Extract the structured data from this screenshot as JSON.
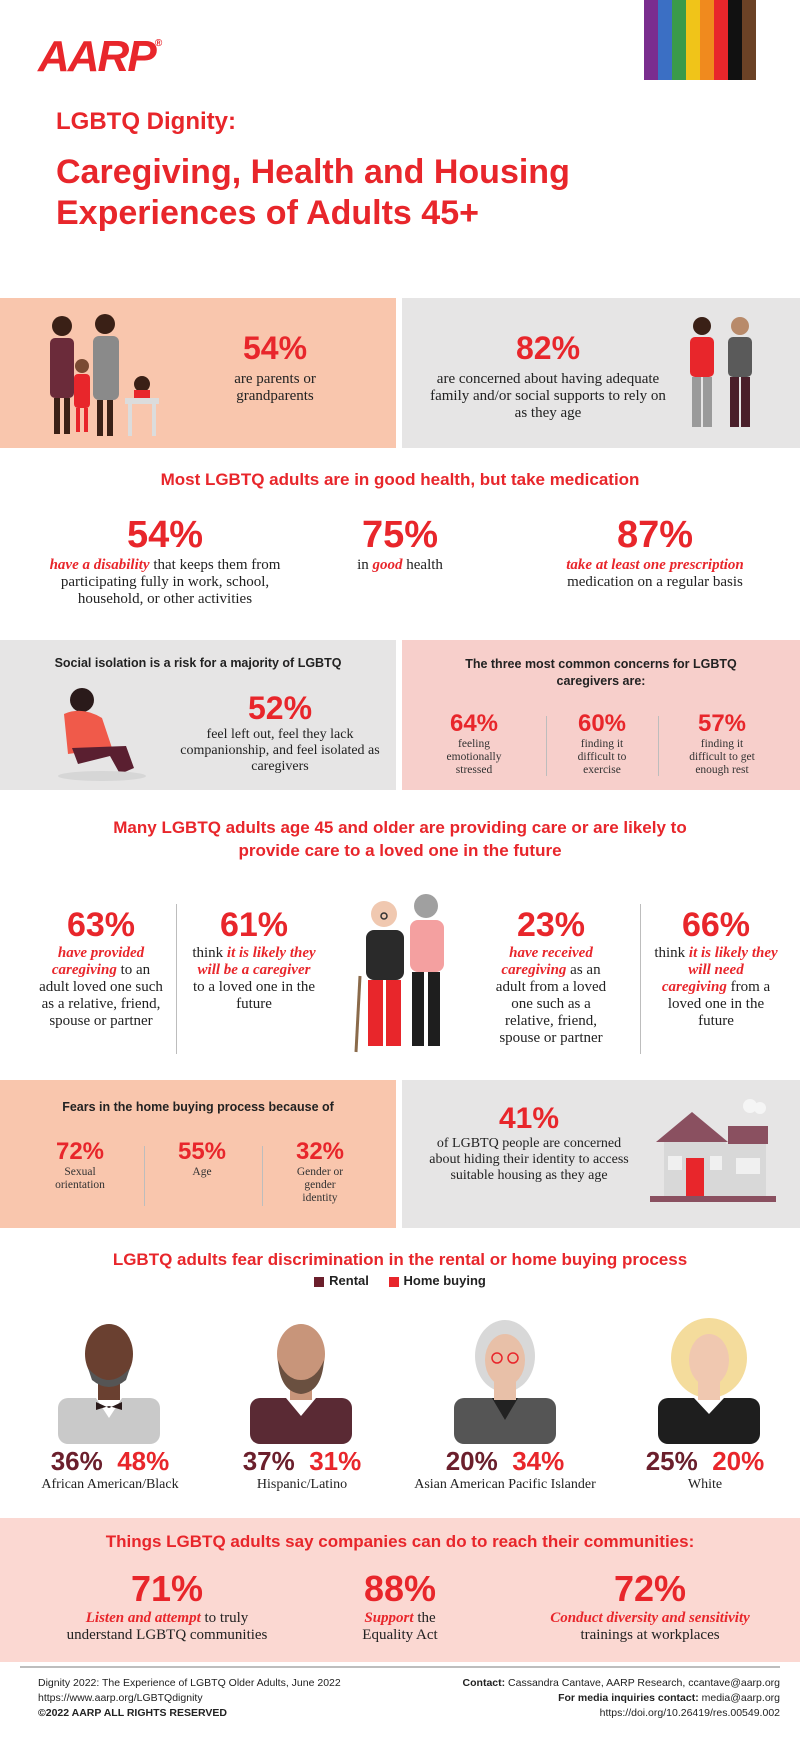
{
  "header": {
    "logo": "AARP",
    "logo_mark": "®",
    "subtitle": "LGBTQ Dignity:",
    "title": "Caregiving, Health and Housing Experiences of Adults 45+",
    "pride_colors": [
      "#7a2d8f",
      "#3b6fc4",
      "#3a9a4a",
      "#f0c419",
      "#f08a1e",
      "#e8262b",
      "#111111",
      "#6b4226"
    ]
  },
  "families": {
    "left": {
      "pct": "54%",
      "desc": "are parents or grandparents"
    },
    "right": {
      "pct": "82%",
      "desc": "are concerned about having adequate family and/or social supports to rely on as they age"
    }
  },
  "health": {
    "heading": "Most LGBTQ adults are in good health, but take medication",
    "s1": {
      "pct": "54%",
      "em": "have a disability",
      "desc": "that keeps them from participating fully in work, school, household, or other activities"
    },
    "s2": {
      "pct": "75%",
      "pre": "in",
      "em": "good",
      "post": "health"
    },
    "s3": {
      "pct": "87%",
      "em": "take at least one prescription",
      "desc": "medication on a regular basis"
    }
  },
  "isolation": {
    "heading": "Social isolation is a risk for a majority of LGBTQ",
    "pct": "52%",
    "desc": "feel left out, feel they lack companionship, and feel isolated as caregivers"
  },
  "concerns": {
    "heading": "The three most common concerns for LGBTQ caregivers are:",
    "items": [
      {
        "pct": "64%",
        "desc": "feeling emotionally stressed"
      },
      {
        "pct": "60%",
        "desc": "finding it difficult to exercise"
      },
      {
        "pct": "57%",
        "desc": "finding it difficult to get enough rest"
      }
    ]
  },
  "care": {
    "heading": "Many LGBTQ adults age 45 and older are providing care or are likely to provide care to a loved one in the future",
    "c1": {
      "pct": "63%",
      "em": "have provided caregiving",
      "desc": "to an adult loved one such as a relative, friend, spouse or partner"
    },
    "c2": {
      "pct": "61%",
      "pre": "think",
      "em1": "it is likely they will be a",
      "em2": "caregiver",
      "desc": "to a loved one in the future"
    },
    "c3": {
      "pct": "23%",
      "em": "have received caregiving",
      "desc": "as an adult from a loved one such as a relative, friend, spouse or partner"
    },
    "c4": {
      "pct": "66%",
      "pre": "think",
      "em1": "it is likely they will need caregiving",
      "desc": "from a loved one in the future"
    }
  },
  "home_fears": {
    "heading": "Fears in the home buying process because of",
    "items": [
      {
        "pct": "72%",
        "desc": "Sexual orientation"
      },
      {
        "pct": "55%",
        "desc": "Age"
      },
      {
        "pct": "32%",
        "desc": "Gender or gender identity"
      }
    ]
  },
  "housing": {
    "pct": "41%",
    "desc": "of LGBTQ people are concerned about hiding their identity to access suitable housing as they age"
  },
  "discrimination": {
    "heading": "LGBTQ adults fear discrimination in the rental or home buying process",
    "legend": {
      "rental": "Rental",
      "buying": "Home buying"
    },
    "colors": {
      "rental": "#6b1f2c",
      "buying": "#e8262b"
    },
    "groups": [
      {
        "label": "African American/Black",
        "rental": "36%",
        "buying": "48%"
      },
      {
        "label": "Hispanic/Latino",
        "rental": "37%",
        "buying": "31%"
      },
      {
        "label": "Asian American Pacific Islander",
        "rental": "20%",
        "buying": "34%"
      },
      {
        "label": "White",
        "rental": "25%",
        "buying": "20%"
      }
    ]
  },
  "companies": {
    "heading": "Things LGBTQ adults say companies can do to reach their communities:",
    "items": [
      {
        "pct": "71%",
        "em": "Listen and attempt",
        "desc": "to truly understand LGBTQ communities"
      },
      {
        "pct": "88%",
        "em": "Support",
        "desc": "the Equality Act"
      },
      {
        "pct": "72%",
        "em": "Conduct diversity and sensitivity",
        "desc": "trainings at workplaces"
      }
    ]
  },
  "footer": {
    "l1": "Dignity 2022: The Experience of LGBTQ Older Adults, June 2022",
    "l2": "https://www.aarp.org/LGBTQdignity",
    "l3": "©2022 AARP ALL RIGHTS RESERVED",
    "contact_label": "Contact:",
    "contact": "Cassandra Cantave, AARP Research, ccantave@aarp.org",
    "media_label": "For media inquiries contact:",
    "media": "media@aarp.org",
    "doi": "https://doi.org/10.26419/res.00549.002"
  }
}
